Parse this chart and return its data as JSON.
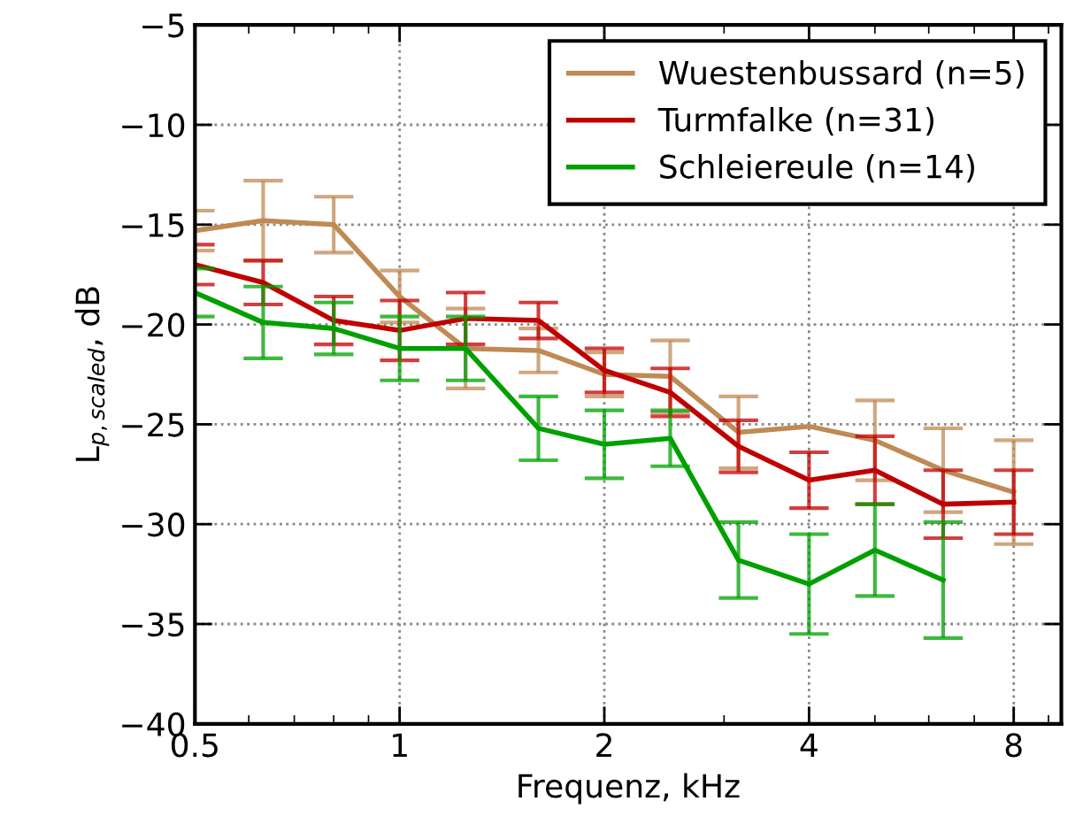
{
  "chart_data": {
    "type": "line",
    "xlabel": "Frequenz, kHz",
    "ylabel": "L$_{p,scaled}$, dB",
    "x": [
      0.5,
      0.63,
      0.8,
      1,
      1.25,
      1.6,
      2,
      2.5,
      3.15,
      4,
      5,
      6.3,
      8
    ],
    "series": [
      {
        "name": "Wuestenbussard (n=5)",
        "color": "#bf8a55",
        "values": [
          -15.3,
          -14.8,
          -15.0,
          -18.6,
          -21.2,
          -21.3,
          -22.5,
          -22.6,
          -25.4,
          -25.1,
          -25.8,
          -27.3,
          -28.4
        ],
        "errors": [
          1.0,
          2.0,
          1.4,
          1.3,
          2.0,
          1.1,
          1.1,
          1.8,
          1.8,
          null,
          2.0,
          2.1,
          2.6
        ]
      },
      {
        "name": "Turmfalke (n=31)",
        "color": "#c00000",
        "values": [
          -17.0,
          -17.9,
          -19.8,
          -20.3,
          -19.7,
          -19.8,
          -22.3,
          -23.4,
          -26.1,
          -27.8,
          -27.3,
          -29.0,
          -28.9
        ],
        "errors": [
          1.0,
          1.1,
          1.2,
          1.5,
          1.3,
          0.9,
          1.1,
          1.2,
          1.3,
          1.4,
          1.7,
          1.7,
          1.6
        ]
      },
      {
        "name": "Schleiereule (n=14)",
        "color": "#00a000",
        "values": [
          -18.4,
          -19.9,
          -20.2,
          -21.2,
          -21.2,
          -25.2,
          -26.0,
          -25.7,
          -31.8,
          -33.0,
          -31.3,
          -32.8,
          null
        ],
        "errors": [
          1.2,
          1.8,
          1.3,
          1.6,
          1.6,
          1.6,
          1.7,
          1.4,
          1.9,
          2.5,
          2.3,
          2.9,
          null
        ]
      }
    ],
    "log": "x",
    "xlim": [
      0.5,
      9.4
    ],
    "xticks": [
      0.5,
      1,
      2,
      4,
      8
    ],
    "ylim": [
      -40,
      -5
    ],
    "yticks": [
      {
        "value": -40,
        "label": "−40"
      },
      {
        "value": -35,
        "label": "−35"
      },
      {
        "value": -30,
        "label": "−30"
      },
      {
        "value": -25,
        "label": "−25"
      },
      {
        "value": -20,
        "label": "−20"
      },
      {
        "value": -15,
        "label": "−15"
      },
      {
        "value": -10,
        "label": "−10"
      },
      {
        "value": -5,
        "label": "−5"
      }
    ],
    "grid": true,
    "legend": "top right"
  }
}
